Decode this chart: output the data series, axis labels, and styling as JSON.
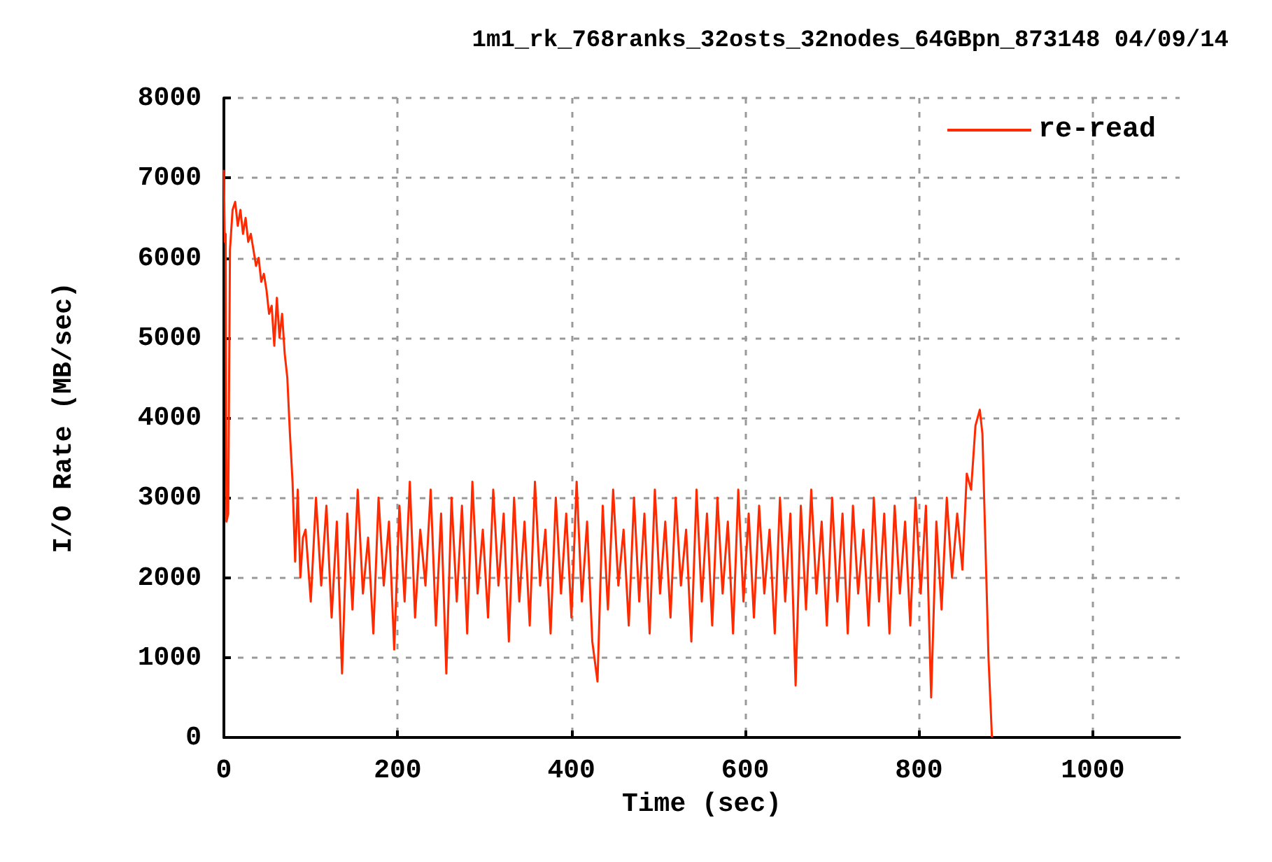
{
  "chart_data": {
    "type": "line",
    "title": "1m1_rk_768ranks_32osts_32nodes_64GBpn_873148 04/09/14",
    "xlabel": "Time (sec)",
    "ylabel": "I/O Rate (MB/sec)",
    "xlim": [
      0,
      1100
    ],
    "xticks": [
      0,
      200,
      400,
      600,
      800,
      1000
    ],
    "ylim": [
      0,
      8000
    ],
    "yticks": [
      0,
      1000,
      2000,
      3000,
      4000,
      5000,
      6000,
      7000,
      8000
    ],
    "grid": true,
    "legend": "top right",
    "marker": "none",
    "line_style": "solid",
    "series": [
      {
        "name": "re-read",
        "color": "#ff2a00",
        "x": [
          0,
          1,
          2,
          3,
          5,
          7,
          10,
          13,
          16,
          19,
          22,
          25,
          28,
          31,
          34,
          37,
          40,
          43,
          46,
          49,
          52,
          55,
          58,
          61,
          64,
          67,
          70,
          73,
          76,
          79,
          82,
          85,
          88,
          91,
          94,
          100,
          106,
          112,
          118,
          124,
          130,
          136,
          142,
          148,
          154,
          160,
          166,
          172,
          178,
          184,
          190,
          196,
          202,
          208,
          214,
          220,
          226,
          232,
          238,
          244,
          250,
          256,
          262,
          268,
          274,
          280,
          286,
          292,
          298,
          304,
          310,
          316,
          322,
          328,
          334,
          340,
          346,
          352,
          358,
          364,
          370,
          376,
          382,
          388,
          394,
          400,
          406,
          412,
          418,
          424,
          430,
          436,
          442,
          448,
          454,
          460,
          466,
          472,
          478,
          484,
          490,
          496,
          502,
          508,
          514,
          520,
          526,
          532,
          538,
          544,
          550,
          556,
          562,
          568,
          574,
          580,
          586,
          592,
          598,
          604,
          610,
          616,
          622,
          628,
          634,
          640,
          646,
          652,
          658,
          664,
          670,
          676,
          682,
          688,
          694,
          700,
          706,
          712,
          718,
          724,
          730,
          736,
          742,
          748,
          754,
          760,
          766,
          772,
          778,
          784,
          790,
          796,
          802,
          808,
          814,
          820,
          826,
          832,
          838,
          844,
          850,
          855,
          860,
          865,
          870,
          873,
          876,
          880,
          884
        ],
        "values": [
          7100,
          6200,
          6300,
          2700,
          2800,
          6100,
          6600,
          6700,
          6400,
          6600,
          6300,
          6500,
          6200,
          6300,
          6100,
          5900,
          6000,
          5700,
          5800,
          5600,
          5300,
          5400,
          4900,
          5500,
          5000,
          5300,
          4800,
          4500,
          3800,
          3200,
          2200,
          3100,
          2000,
          2500,
          2600,
          1700,
          3000,
          1900,
          2900,
          1500,
          2700,
          800,
          2800,
          1600,
          3100,
          1800,
          2500,
          1300,
          3000,
          1900,
          2700,
          1100,
          2900,
          1700,
          3200,
          1500,
          2600,
          1900,
          3100,
          1400,
          2800,
          800,
          3000,
          1700,
          2900,
          1300,
          3200,
          1800,
          2600,
          1500,
          3100,
          1900,
          2800,
          1200,
          3000,
          1700,
          2700,
          1400,
          3200,
          1900,
          2600,
          1300,
          3000,
          1800,
          2800,
          1500,
          3200,
          1700,
          2700,
          1200,
          700,
          2900,
          1600,
          3100,
          1900,
          2600,
          1400,
          3000,
          1700,
          2800,
          1300,
          3100,
          1800,
          2700,
          1500,
          3000,
          1900,
          2600,
          1200,
          3100,
          1700,
          2800,
          1400,
          3000,
          1800,
          2700,
          1300,
          3100,
          1700,
          2800,
          1500,
          2900,
          1800,
          2600,
          1300,
          3000,
          1700,
          2800,
          650,
          2900,
          1600,
          3100,
          1800,
          2700,
          1400,
          3000,
          1700,
          2800,
          1300,
          2900,
          1800,
          2600,
          1400,
          3000,
          1700,
          2800,
          1300,
          2900,
          1800,
          2700,
          1400,
          3000,
          1800,
          2900,
          500,
          2700,
          1600,
          3000,
          2000,
          2800,
          2100,
          3300,
          3100,
          3900,
          4100,
          3800,
          2600,
          1000,
          0
        ]
      }
    ]
  }
}
